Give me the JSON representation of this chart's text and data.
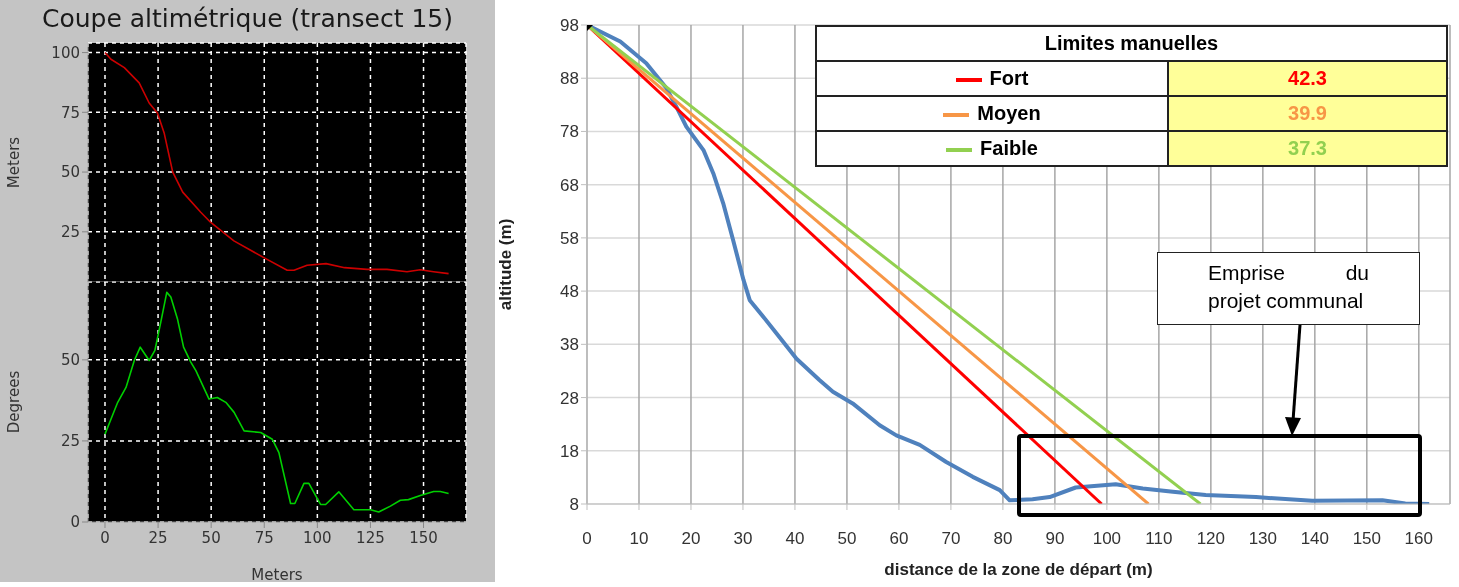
{
  "chart_data": [
    {
      "type": "line",
      "title": "Coupe altimétrique (transect 15)",
      "ylabel": "Meters",
      "xlim": [
        -8,
        170
      ],
      "xticks": [
        0,
        25,
        50,
        75,
        100,
        125,
        150
      ],
      "ylim": [
        4,
        104
      ],
      "yticks": [
        25,
        50,
        75,
        100
      ],
      "grid": true,
      "tick_labels": "y",
      "x": [
        0,
        2.8,
        9.1,
        16.1,
        20.8,
        24.7,
        27.9,
        31.9,
        36.6,
        45.1,
        49.8,
        60.7,
        74.8,
        85.8,
        89,
        95.2,
        104.1,
        112.8,
        123.4,
        132.8,
        142.2,
        148.5,
        154.7,
        161.8
      ],
      "series": [
        {
          "color": "#cc0000",
          "values": [
            100,
            97.2,
            93.7,
            87.3,
            78.9,
            74.7,
            66.2,
            50,
            41.6,
            33.2,
            28.9,
            21.2,
            14.2,
            8.9,
            8.9,
            11,
            11.7,
            10,
            9.3,
            9.3,
            8.3,
            9.1,
            8.3,
            7.5
          ]
        }
      ]
    },
    {
      "type": "line",
      "xlabel": "Meters",
      "ylabel": "Degrees",
      "xlim": [
        -8,
        170
      ],
      "xticks": [
        0,
        25,
        50,
        75,
        100,
        125,
        150
      ],
      "ylim": [
        0,
        74
      ],
      "yticks": [
        0,
        25,
        50
      ],
      "grid": true,
      "x": [
        0,
        2.8,
        6,
        9.9,
        13.8,
        16.6,
        20.8,
        23.5,
        26.3,
        29.1,
        31,
        34.1,
        37,
        40.4,
        42.8,
        49,
        52.9,
        56.9,
        60.8,
        65.5,
        73.3,
        78.8,
        81.9,
        87.4,
        89.4,
        93.7,
        96,
        101.5,
        103.9,
        110.1,
        117.2,
        125,
        128.9,
        134.4,
        139.1,
        142.9,
        148.5,
        154.8,
        157.9,
        161.8
      ],
      "series": [
        {
          "color": "#00d000",
          "values": [
            27.1,
            31.7,
            36.9,
            41.5,
            49.8,
            53.9,
            49.8,
            52.9,
            61.7,
            70.8,
            69.4,
            62.7,
            53.9,
            49.3,
            46.7,
            37.9,
            38.4,
            36.9,
            33.8,
            28.1,
            27.6,
            25.5,
            21.4,
            5.7,
            5.7,
            11.9,
            11.9,
            5.4,
            5.4,
            9.3,
            3.8,
            3.8,
            3.1,
            4.9,
            6.7,
            6.9,
            8.2,
            9.4,
            9.4,
            8.8
          ]
        }
      ]
    },
    {
      "type": "line",
      "xlabel": "distance de la zone de départ (m)",
      "ylabel": "altitude (m)",
      "legend_title": "Limites manuelles",
      "legend": "top right",
      "xlim": [
        0,
        166
      ],
      "xticks": [
        0,
        10,
        20,
        30,
        40,
        50,
        60,
        70,
        80,
        90,
        100,
        110,
        120,
        130,
        140,
        150,
        160
      ],
      "ylim": [
        8,
        98
      ],
      "yticks": [
        8,
        18,
        28,
        38,
        48,
        58,
        68,
        78,
        88,
        98
      ],
      "grid": true,
      "annotations": [
        "42.3",
        "39.9",
        "37.3",
        "Emprise du projet communal"
      ],
      "series": [
        {
          "color": "#4f81bd",
          "x": [
            0,
            6.4,
            11.4,
            15.3,
            17.2,
            19.1,
            22.4,
            24.3,
            26.2,
            28.1,
            30.1,
            31.3,
            33.9,
            37,
            40.3,
            44.7,
            47.3,
            51.1,
            56.3,
            59.5,
            64,
            69.1,
            74.2,
            79.4,
            81.3,
            85.7,
            89,
            94,
            101.7,
            106.9,
            112.7,
            119,
            128.7,
            139.5,
            153,
            157.4,
            162
          ],
          "values": [
            98,
            94.9,
            90.8,
            86.1,
            82.6,
            78.9,
            74.5,
            70.1,
            64.5,
            57.6,
            50.1,
            46.3,
            43.2,
            39.4,
            35.3,
            31.3,
            29.1,
            26.9,
            22.8,
            20.9,
            19.1,
            15.9,
            13.1,
            10.6,
            8.7,
            8.9,
            9.3,
            11.1,
            11.7,
            10.9,
            10.3,
            9.7,
            9.3,
            8.6,
            8.7,
            8.1,
            8
          ]
        },
        {
          "name": "Fort",
          "color": "#ff0000",
          "x": [
            0,
            99
          ],
          "values": [
            98,
            8
          ]
        },
        {
          "name": "Moyen",
          "color": "#f79646",
          "x": [
            0,
            108
          ],
          "values": [
            98,
            8
          ]
        },
        {
          "name": "Faible",
          "color": "#92d050",
          "x": [
            0,
            118
          ],
          "values": [
            98,
            8
          ]
        },
        {
          "type": "scatter",
          "color": "#000000",
          "x": [
            0
          ],
          "values": [
            98
          ],
          "marker": "diamond"
        }
      ]
    }
  ]
}
